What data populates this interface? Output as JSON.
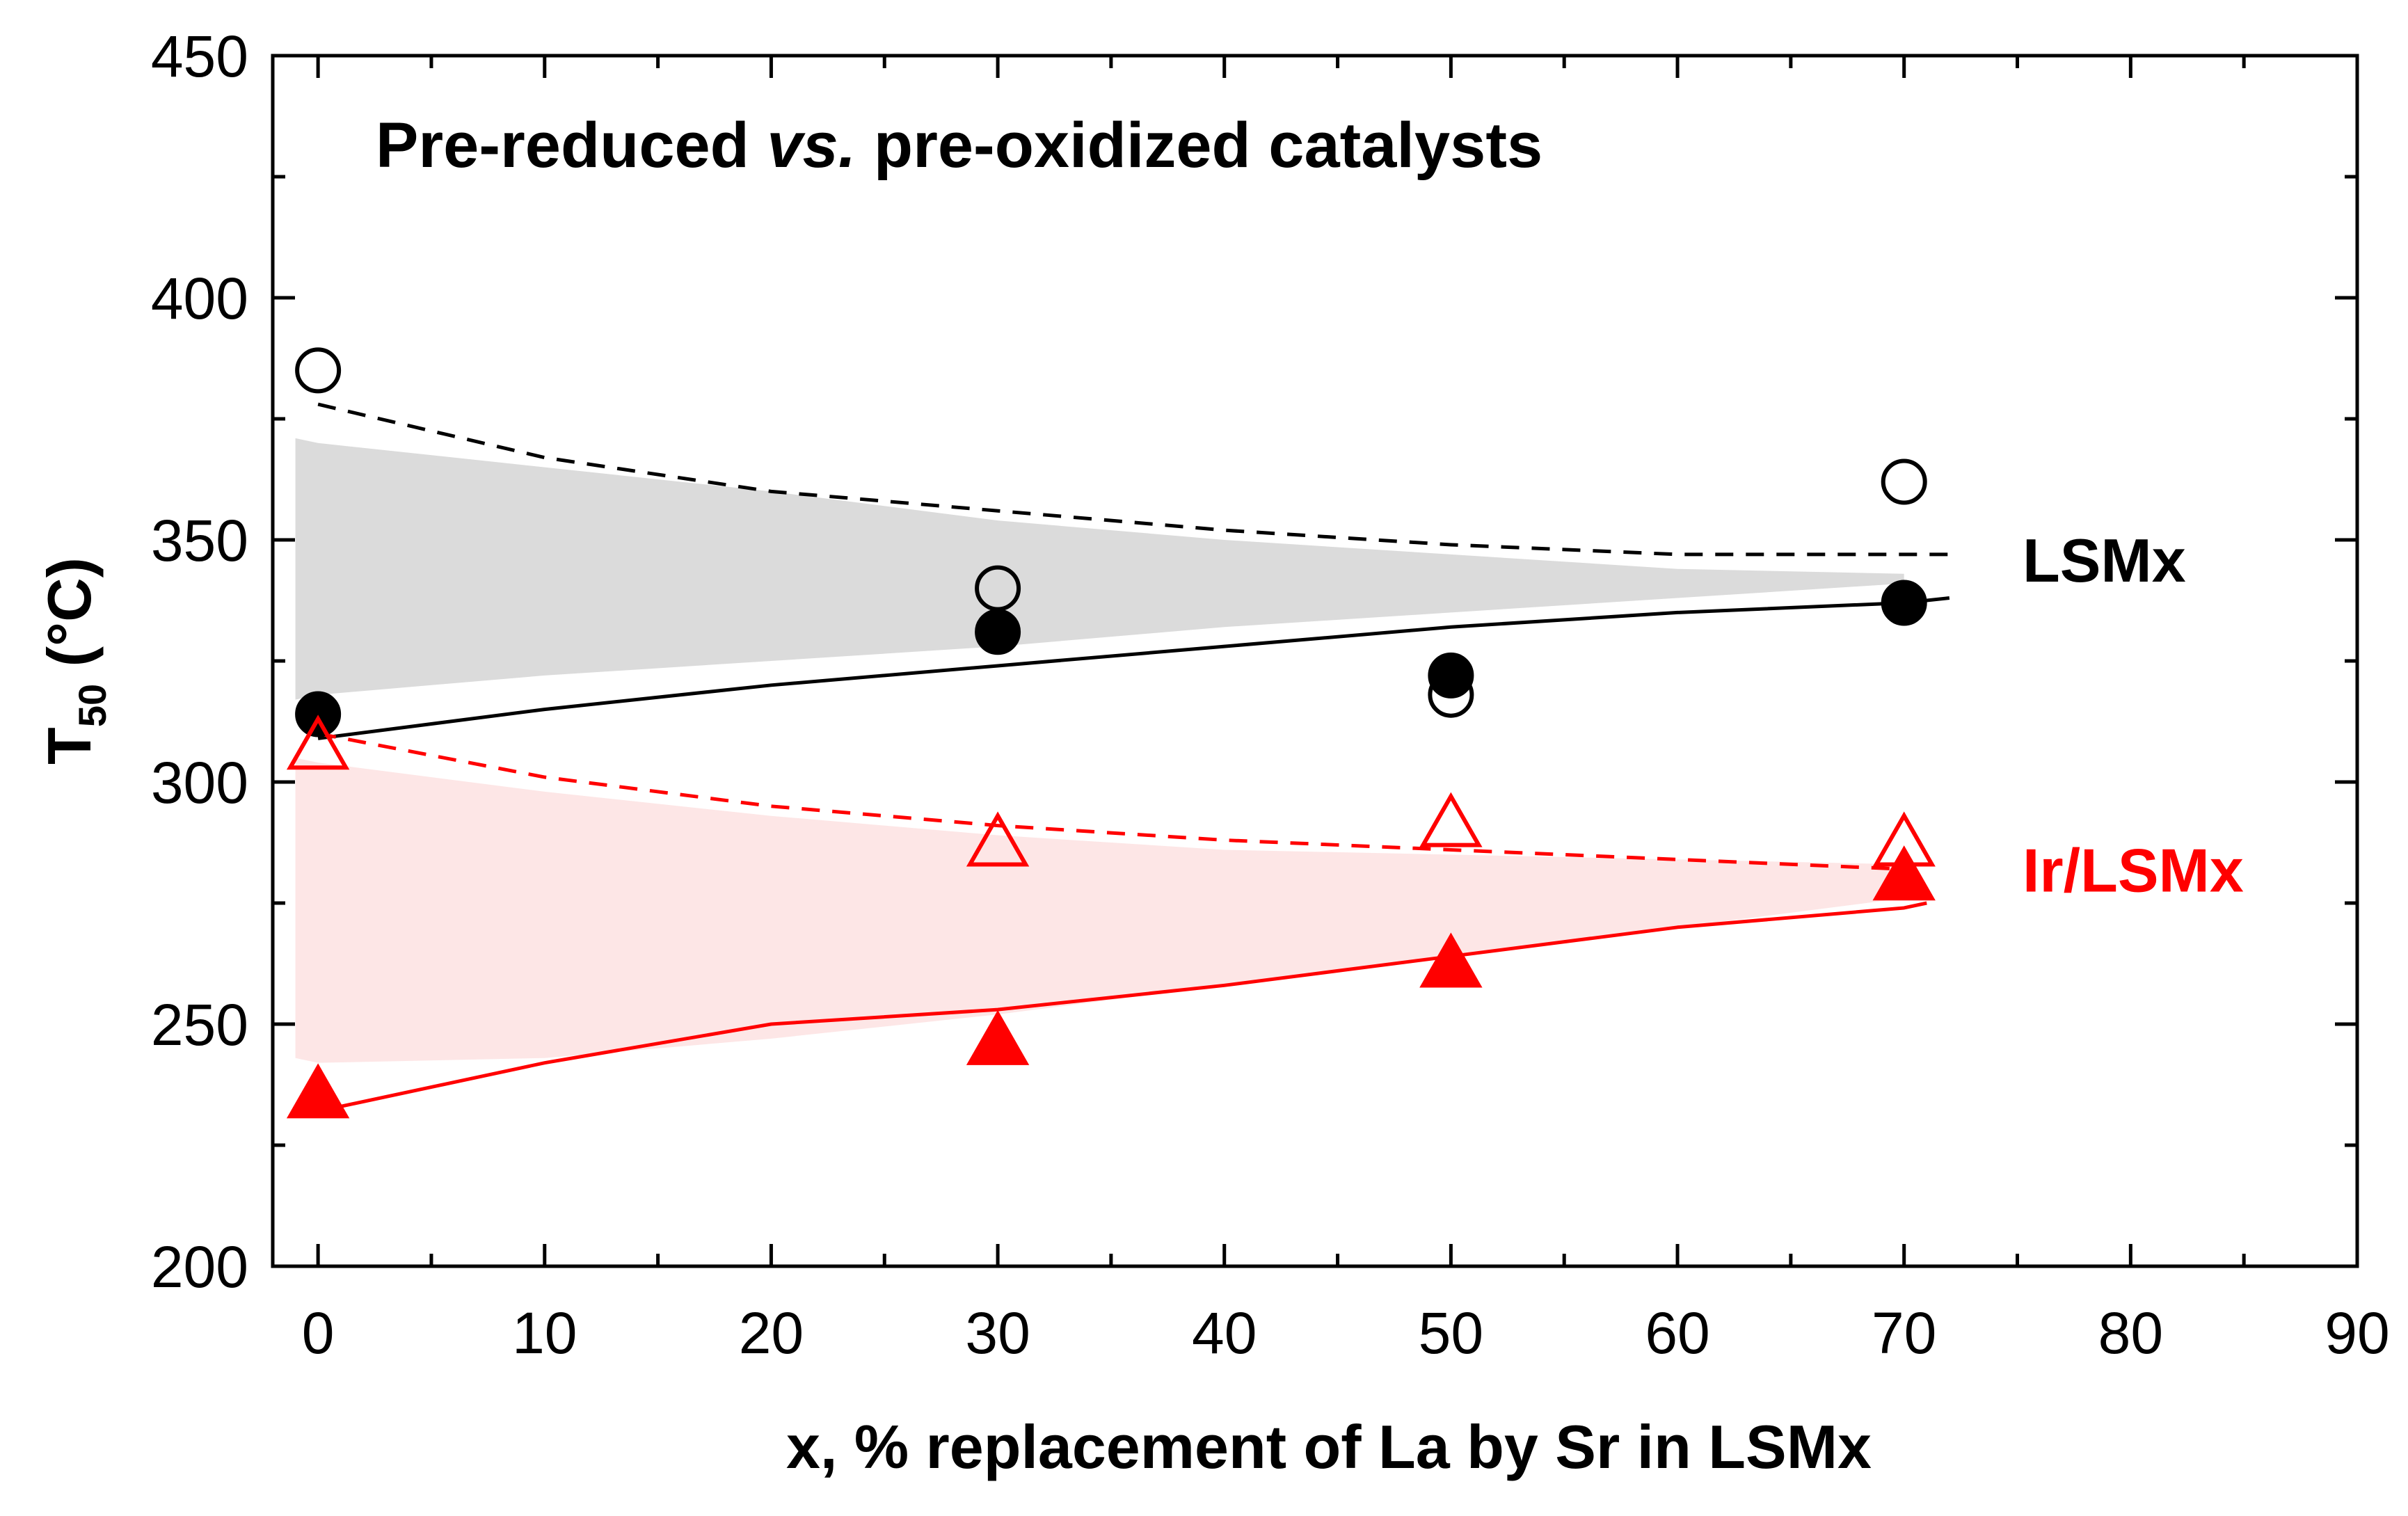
{
  "chart_data": {
    "type": "scatter",
    "title_parts": [
      "Pre-reduced ",
      "vs.",
      " pre-oxidized catalysts"
    ],
    "xlabel": "x, % replacement of La by Sr in LSMx",
    "ylabel": {
      "main": "T",
      "sub": "50",
      "rest": " (°C)"
    },
    "xlim": [
      -2,
      90
    ],
    "ylim": [
      200,
      450
    ],
    "xticks": [
      0,
      10,
      20,
      30,
      40,
      50,
      60,
      70,
      80,
      90
    ],
    "yticks": [
      200,
      250,
      300,
      350,
      400,
      450
    ],
    "grid": false,
    "series": [
      {
        "name": "LSMx",
        "marker": "circle",
        "filled": false,
        "color": "#000000",
        "x": [
          0,
          30,
          50,
          70
        ],
        "y": [
          385,
          340,
          318,
          362
        ]
      },
      {
        "name": "LSMx",
        "marker": "circle",
        "filled": true,
        "color": "#000000",
        "x": [
          0,
          30,
          50,
          70
        ],
        "y": [
          314,
          331,
          322,
          337
        ]
      },
      {
        "name": "Ir/LSMx",
        "marker": "triangle",
        "filled": false,
        "color": "#ff0000",
        "x": [
          0,
          30,
          50,
          70
        ],
        "y": [
          307,
          287,
          291,
          287
        ]
      },
      {
        "name": "Ir/LSMx",
        "marker": "triangle",
        "filled": true,
        "color": "#ff0000",
        "x": [
          0,
          30,
          50,
          70
        ],
        "y": [
          235,
          246,
          262,
          280
        ]
      }
    ],
    "trend_lines": [
      {
        "style": "dashed",
        "color": "#000000",
        "x": [
          0,
          10,
          20,
          30,
          40,
          50,
          60,
          70,
          72
        ],
        "y": [
          378,
          367,
          360,
          356,
          352,
          349,
          347,
          347,
          347
        ]
      },
      {
        "style": "solid",
        "color": "#000000",
        "x": [
          0,
          10,
          20,
          30,
          40,
          50,
          60,
          70,
          72
        ],
        "y": [
          309,
          315,
          320,
          324,
          328,
          332,
          335,
          337,
          338
        ]
      },
      {
        "style": "dashed",
        "color": "#ff0000",
        "x": [
          0,
          10,
          20,
          30,
          40,
          50,
          60,
          70
        ],
        "y": [
          310,
          301,
          295,
          291,
          288,
          286,
          284,
          282
        ]
      },
      {
        "style": "solid",
        "color": "#ff0000",
        "x": [
          0,
          10,
          20,
          30,
          40,
          50,
          60,
          70,
          71
        ],
        "y": [
          232,
          242,
          250,
          253,
          258,
          264,
          270,
          274,
          275
        ]
      }
    ],
    "shaded_bands": [
      {
        "color": "#cccccc",
        "opacity": 0.7,
        "x": [
          -1,
          0,
          10,
          20,
          30,
          40,
          50,
          60,
          70
        ],
        "upper": [
          371,
          370,
          365,
          360,
          354,
          350,
          347,
          344,
          343
        ],
        "lower": [
          317,
          318,
          322,
          325,
          328,
          332,
          335,
          338,
          341
        ]
      },
      {
        "color": "#fbd5d5",
        "opacity": 0.6,
        "x": [
          -1,
          0,
          10,
          20,
          30,
          40,
          50,
          60,
          70
        ],
        "upper": [
          305,
          304,
          298,
          293,
          289,
          286,
          285,
          284,
          283
        ],
        "lower": [
          243,
          242,
          243,
          247,
          252,
          258,
          264,
          270,
          276
        ]
      }
    ],
    "annotations": [
      {
        "text": "LSMx",
        "color": "#000000",
        "x": 74,
        "y": 346
      },
      {
        "text": "Ir/LSMx",
        "color": "#ff0000",
        "x": 74,
        "y": 282
      }
    ]
  }
}
